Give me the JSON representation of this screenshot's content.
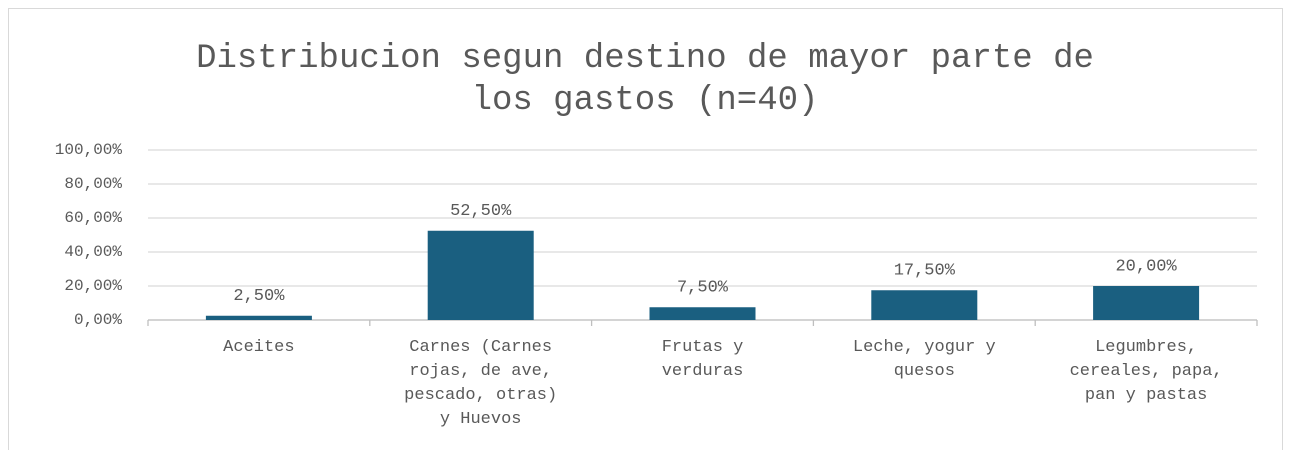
{
  "chart_data": {
    "type": "bar",
    "title": "Distribucion segun destino de mayor parte de los gastos (n=40)",
    "categories": [
      "Aceites",
      "Carnes (Carnes rojas, de ave, pescado, otras) y Huevos",
      "Frutas y verduras",
      "Leche, yogur y quesos",
      "Legumbres, cereales, papa, pan y pastas"
    ],
    "values": [
      2.5,
      52.5,
      7.5,
      17.5,
      20
    ],
    "value_labels": [
      "2,50%",
      "52,50%",
      "7,50%",
      "17,50%",
      "20,00%"
    ],
    "color": "#1a5f80",
    "ylim": [
      0,
      100
    ],
    "yticks": [
      {
        "value": 0,
        "label": "0,00%"
      },
      {
        "value": 20,
        "label": "20,00%"
      },
      {
        "value": 40,
        "label": "40,00%"
      },
      {
        "value": 60,
        "label": "60,00%"
      },
      {
        "value": 80,
        "label": "80,00%"
      },
      {
        "value": 100,
        "label": "100,00%"
      }
    ],
    "grid": true
  }
}
